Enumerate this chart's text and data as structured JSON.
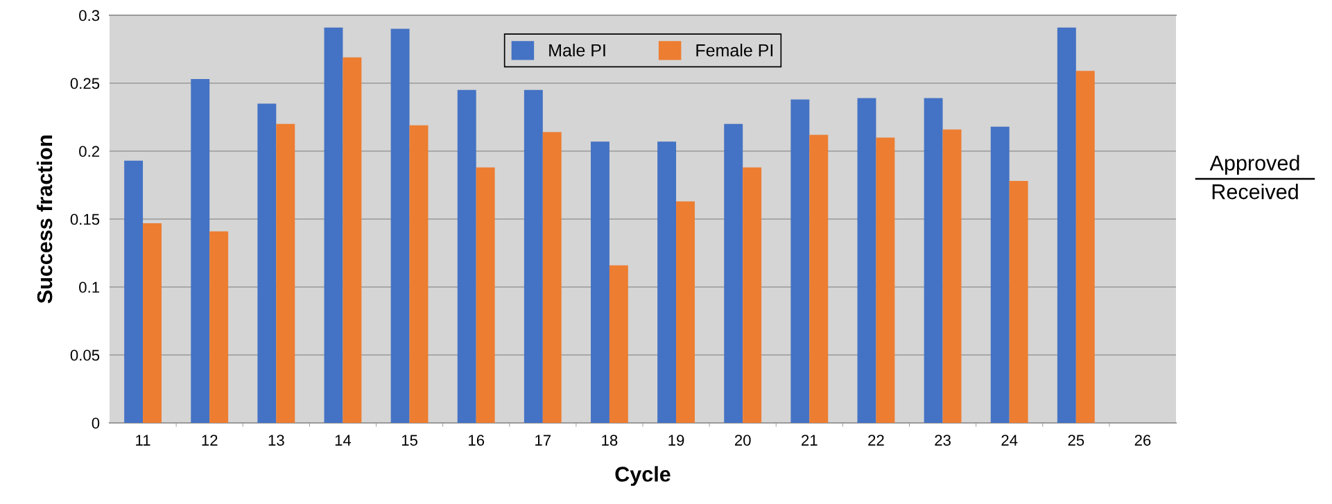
{
  "chart_data": {
    "type": "bar",
    "xlabel": "Cycle",
    "ylabel": "Success fraction",
    "categories": [
      "11",
      "12",
      "13",
      "14",
      "15",
      "16",
      "17",
      "18",
      "19",
      "20",
      "21",
      "22",
      "23",
      "24",
      "25",
      "26"
    ],
    "series": [
      {
        "name": "Male PI",
        "color": "#4472c4",
        "values": [
          0.193,
          0.253,
          0.235,
          0.291,
          0.29,
          0.245,
          0.245,
          0.207,
          0.207,
          0.22,
          0.238,
          0.239,
          0.239,
          0.218,
          0.291,
          null
        ]
      },
      {
        "name": "Female PI",
        "color": "#ed7d31",
        "values": [
          0.147,
          0.141,
          0.22,
          0.269,
          0.219,
          0.188,
          0.214,
          0.116,
          0.163,
          0.188,
          0.212,
          0.21,
          0.216,
          0.178,
          0.259,
          null
        ]
      }
    ],
    "ylim": [
      0,
      0.3
    ],
    "yticks": [
      0,
      0.05,
      0.1,
      0.15,
      0.2,
      0.25,
      0.3
    ],
    "grid": "y",
    "legend": "top",
    "annotations": [
      "Approved",
      "Received"
    ]
  }
}
